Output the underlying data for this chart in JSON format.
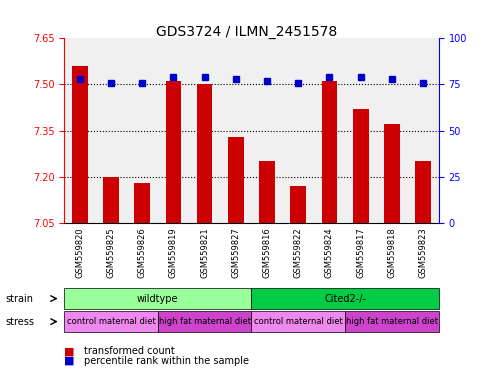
{
  "title": "GDS3724 / ILMN_2451578",
  "samples": [
    "GSM559820",
    "GSM559825",
    "GSM559826",
    "GSM559819",
    "GSM559821",
    "GSM559827",
    "GSM559816",
    "GSM559822",
    "GSM559824",
    "GSM559817",
    "GSM559818",
    "GSM559823"
  ],
  "bar_values": [
    7.56,
    7.2,
    7.18,
    7.51,
    7.5,
    7.33,
    7.25,
    7.17,
    7.51,
    7.42,
    7.37,
    7.25
  ],
  "percentile_values": [
    78,
    76,
    76,
    79,
    79,
    78,
    77,
    76,
    79,
    79,
    78,
    76
  ],
  "ymin": 7.05,
  "ymax": 7.65,
  "y2min": 0,
  "y2max": 100,
  "yticks": [
    7.05,
    7.2,
    7.35,
    7.5,
    7.65
  ],
  "y2ticks": [
    0,
    25,
    50,
    75,
    100
  ],
  "bar_color": "#cc0000",
  "dot_color": "#0000cc",
  "bg_color": "#ffffff",
  "plot_bg": "#ffffff",
  "strain_labels": [
    {
      "label": "wildtype",
      "start": 0,
      "end": 6,
      "color": "#99ff99"
    },
    {
      "label": "Cited2-/-",
      "start": 6,
      "end": 12,
      "color": "#00cc44"
    }
  ],
  "stress_groups": [
    {
      "label": "control maternal diet",
      "start": 0,
      "end": 3,
      "color": "#ee88ee"
    },
    {
      "label": "high fat maternal diet",
      "start": 3,
      "end": 6,
      "color": "#cc44cc"
    },
    {
      "label": "control maternal diet",
      "start": 6,
      "end": 9,
      "color": "#ee88ee"
    },
    {
      "label": "high fat maternal diet",
      "start": 9,
      "end": 12,
      "color": "#cc44cc"
    }
  ],
  "legend_items": [
    {
      "label": "transformed count",
      "color": "#cc0000",
      "marker": "s"
    },
    {
      "label": "percentile rank within the sample",
      "color": "#0000cc",
      "marker": "s"
    }
  ],
  "strain_label": "strain",
  "stress_label": "stress"
}
